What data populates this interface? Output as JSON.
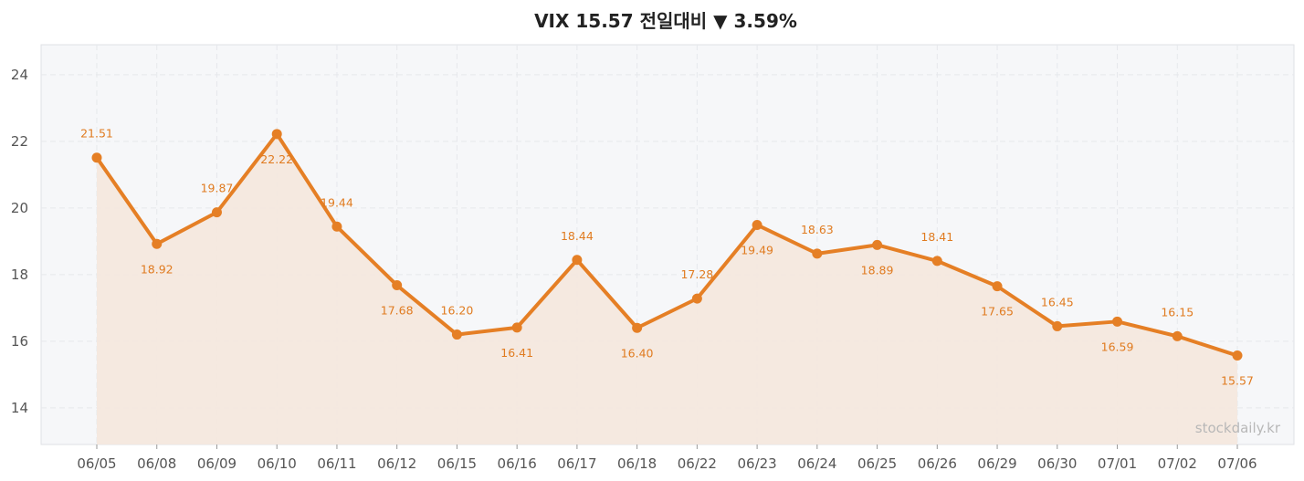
{
  "header": {
    "title": "VIX  15.57  전일대비 ▼ 3.59%"
  },
  "watermark": "stockdaily.kr",
  "colors": {
    "line": "#e57f25",
    "area_fill": "#f4e8de",
    "plot_background": "#f6f7f9",
    "label": "#e07b20",
    "grid": "#e6e8ec"
  },
  "chart_data": {
    "type": "line",
    "title": "VIX  15.57  전일대비 ▼ 3.59%",
    "xlabel": "",
    "ylabel": "",
    "x": [
      "06/05",
      "06/08",
      "06/09",
      "06/10",
      "06/11",
      "06/12",
      "06/15",
      "06/16",
      "06/17",
      "06/18",
      "06/22",
      "06/23",
      "06/24",
      "06/25",
      "06/26",
      "06/29",
      "06/30",
      "07/01",
      "07/02",
      "07/06"
    ],
    "series": [
      {
        "values": [
          21.51,
          18.92,
          19.87,
          22.22,
          19.44,
          17.68,
          16.2,
          16.41,
          18.44,
          16.4,
          17.28,
          19.49,
          18.63,
          18.89,
          18.41,
          17.65,
          16.45,
          16.59,
          16.15,
          15.57
        ],
        "value_labels": [
          "21.51",
          "18.92",
          "19.87",
          "22.22",
          "19.44",
          "17.68",
          "16.20",
          "16.41",
          "18.44",
          "16.40",
          "17.28",
          "19.49",
          "18.63",
          "18.89",
          "18.41",
          "17.65",
          "16.45",
          "16.59",
          "16.15",
          "15.57"
        ],
        "label_position": [
          "above",
          "below",
          "above",
          "below",
          "above",
          "below",
          "above",
          "below",
          "above",
          "below",
          "above",
          "below",
          "above",
          "below",
          "above",
          "below",
          "above",
          "below",
          "above",
          "below"
        ]
      }
    ],
    "yticks": [
      14,
      16,
      18,
      20,
      22,
      24
    ],
    "ylim": [
      12.9,
      24.9
    ],
    "grid": true,
    "area_fill": true
  }
}
